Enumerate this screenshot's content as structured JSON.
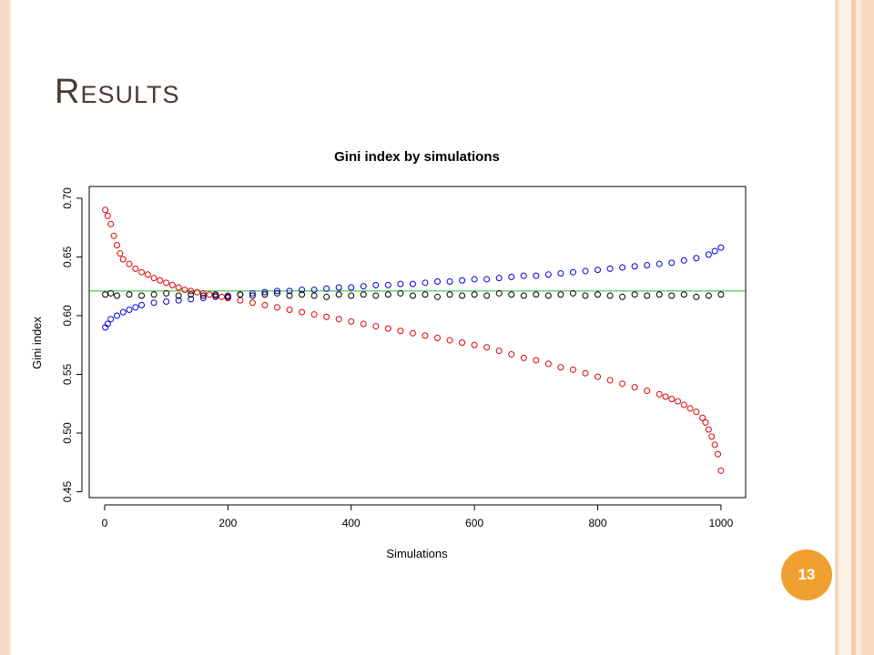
{
  "slide": {
    "title": "Results",
    "page_number": "13"
  },
  "colors": {
    "background": "#ffffff",
    "title": "#4a3a30",
    "badge": "#f0a030",
    "series_red": "#e00000",
    "series_blue": "#0000e0",
    "series_black": "#000000",
    "reference_line": "#22bb22"
  },
  "chart_data": {
    "type": "scatter",
    "title": "Gini index by simulations",
    "xlabel": "Simulations",
    "ylabel": "Gini index",
    "xlim": [
      -25,
      1040
    ],
    "ylim": [
      0.445,
      0.71
    ],
    "x_ticks": [
      0,
      200,
      400,
      600,
      800,
      1000
    ],
    "x_tick_labels": [
      "0",
      "200",
      "400",
      "600",
      "800",
      "1000"
    ],
    "y_ticks": [
      0.45,
      0.5,
      0.55,
      0.6,
      0.65,
      0.7
    ],
    "y_tick_labels": [
      "0.45",
      "0.50",
      "0.55",
      "0.60",
      "0.65",
      "0.70"
    ],
    "reference_line": {
      "orientation": "horizontal",
      "y": 0.621,
      "color": "#22bb22"
    },
    "marker": "open-circle",
    "grid": false,
    "legend": "none",
    "series": [
      {
        "color": "#e00000",
        "x": [
          1,
          5,
          10,
          15,
          20,
          25,
          30,
          40,
          50,
          60,
          70,
          80,
          90,
          100,
          110,
          120,
          130,
          140,
          150,
          160,
          170,
          180,
          190,
          200,
          220,
          240,
          260,
          280,
          300,
          320,
          340,
          360,
          380,
          400,
          420,
          440,
          460,
          480,
          500,
          520,
          540,
          560,
          580,
          600,
          620,
          640,
          660,
          680,
          700,
          720,
          740,
          760,
          780,
          800,
          820,
          840,
          860,
          880,
          900,
          910,
          920,
          930,
          940,
          950,
          960,
          970,
          975,
          980,
          985,
          990,
          995,
          1000
        ],
        "y": [
          0.69,
          0.685,
          0.678,
          0.668,
          0.66,
          0.653,
          0.648,
          0.644,
          0.64,
          0.637,
          0.635,
          0.632,
          0.63,
          0.628,
          0.626,
          0.624,
          0.622,
          0.621,
          0.62,
          0.619,
          0.618,
          0.617,
          0.616,
          0.615,
          0.613,
          0.611,
          0.609,
          0.607,
          0.605,
          0.603,
          0.601,
          0.599,
          0.597,
          0.595,
          0.593,
          0.591,
          0.589,
          0.587,
          0.585,
          0.583,
          0.581,
          0.579,
          0.577,
          0.575,
          0.573,
          0.57,
          0.567,
          0.564,
          0.562,
          0.559,
          0.556,
          0.554,
          0.551,
          0.548,
          0.545,
          0.542,
          0.539,
          0.536,
          0.533,
          0.531,
          0.529,
          0.527,
          0.524,
          0.521,
          0.518,
          0.513,
          0.509,
          0.503,
          0.497,
          0.49,
          0.482,
          0.468
        ]
      },
      {
        "color": "#0000e0",
        "x": [
          1,
          5,
          10,
          20,
          30,
          40,
          50,
          60,
          80,
          100,
          120,
          140,
          160,
          180,
          200,
          220,
          240,
          260,
          280,
          300,
          320,
          340,
          360,
          380,
          400,
          420,
          440,
          460,
          480,
          500,
          520,
          540,
          560,
          580,
          600,
          620,
          640,
          660,
          680,
          700,
          720,
          740,
          760,
          780,
          800,
          820,
          840,
          860,
          880,
          900,
          920,
          940,
          960,
          980,
          990,
          1000
        ],
        "y": [
          0.59,
          0.593,
          0.597,
          0.6,
          0.603,
          0.605,
          0.607,
          0.609,
          0.611,
          0.612,
          0.613,
          0.614,
          0.615,
          0.616,
          0.617,
          0.618,
          0.619,
          0.62,
          0.621,
          0.621,
          0.622,
          0.622,
          0.623,
          0.624,
          0.624,
          0.625,
          0.626,
          0.626,
          0.627,
          0.627,
          0.628,
          0.629,
          0.629,
          0.63,
          0.631,
          0.631,
          0.632,
          0.633,
          0.634,
          0.634,
          0.635,
          0.636,
          0.637,
          0.638,
          0.639,
          0.64,
          0.641,
          0.642,
          0.643,
          0.644,
          0.645,
          0.647,
          0.649,
          0.652,
          0.655,
          0.658
        ]
      },
      {
        "color": "#000000",
        "x": [
          1,
          10,
          20,
          40,
          60,
          80,
          100,
          120,
          140,
          160,
          180,
          200,
          220,
          240,
          260,
          280,
          300,
          320,
          340,
          360,
          380,
          400,
          420,
          440,
          460,
          480,
          500,
          520,
          540,
          560,
          580,
          600,
          620,
          640,
          660,
          680,
          700,
          720,
          740,
          760,
          780,
          800,
          820,
          840,
          860,
          880,
          900,
          920,
          940,
          960,
          980,
          1000
        ],
        "y": [
          0.618,
          0.619,
          0.617,
          0.618,
          0.617,
          0.618,
          0.619,
          0.617,
          0.618,
          0.617,
          0.618,
          0.616,
          0.618,
          0.617,
          0.618,
          0.619,
          0.617,
          0.618,
          0.617,
          0.616,
          0.618,
          0.617,
          0.618,
          0.617,
          0.618,
          0.619,
          0.617,
          0.618,
          0.616,
          0.618,
          0.617,
          0.618,
          0.617,
          0.619,
          0.618,
          0.617,
          0.618,
          0.617,
          0.618,
          0.619,
          0.617,
          0.618,
          0.617,
          0.616,
          0.618,
          0.617,
          0.618,
          0.617,
          0.618,
          0.616,
          0.617,
          0.618
        ]
      }
    ]
  }
}
